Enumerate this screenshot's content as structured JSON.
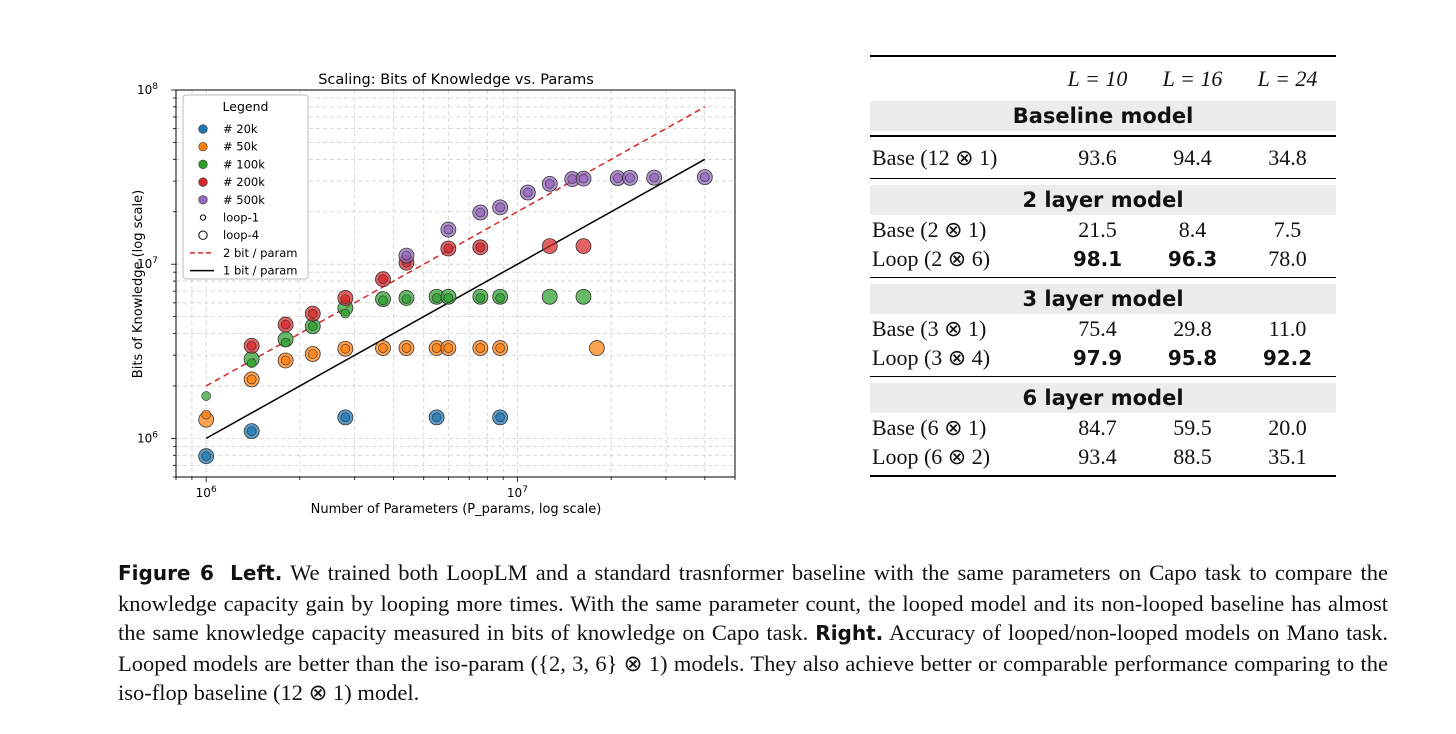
{
  "chart_data": {
    "type": "scatter",
    "title": "Scaling: Bits of Knowledge vs. Params",
    "xlabel": "Number of Parameters (P_params, log scale)",
    "ylabel": "Bits of Knowledge (log scale)",
    "xscale": "log",
    "yscale": "log",
    "xlim": [
      800000,
      50000000
    ],
    "ylim": [
      600000,
      100000000
    ],
    "xticks": [
      {
        "value": 1000000,
        "base": "10",
        "exp": "6"
      },
      {
        "value": 10000000,
        "base": "10",
        "exp": "7"
      }
    ],
    "yticks": [
      {
        "value": 1000000,
        "base": "10",
        "exp": "6"
      },
      {
        "value": 10000000,
        "base": "10",
        "exp": "7"
      },
      {
        "value": 100000000,
        "base": "10",
        "exp": "8"
      }
    ],
    "grid": true,
    "legend": {
      "title": "Legend",
      "placement": "top-left",
      "entries": [
        {
          "label": "# 20k",
          "kind": "dot",
          "color": "#1f77b4"
        },
        {
          "label": "# 50k",
          "kind": "dot",
          "color": "#ff7f0e"
        },
        {
          "label": "# 100k",
          "kind": "dot",
          "color": "#2ca02c"
        },
        {
          "label": "# 200k",
          "kind": "dot",
          "color": "#d62728"
        },
        {
          "label": "# 500k",
          "kind": "dot",
          "color": "#9467bd"
        },
        {
          "label": "loop-1",
          "kind": "hollow-small"
        },
        {
          "label": "loop-4",
          "kind": "hollow-large"
        },
        {
          "label": "2 bit / param",
          "kind": "dashed",
          "color": "#d62728"
        },
        {
          "label": "1 bit / param",
          "kind": "solid",
          "color": "#000000"
        }
      ]
    },
    "lines": [
      {
        "name": "2 bit / param",
        "color": "#d62728",
        "style": "dashed",
        "x": [
          1000000,
          40000000
        ],
        "y": [
          2000000,
          80000000
        ]
      },
      {
        "name": "1 bit / param",
        "color": "#000000",
        "style": "solid",
        "x": [
          1000000,
          40000000
        ],
        "y": [
          1000000,
          40000000
        ]
      }
    ],
    "series": [
      {
        "name": "# 20k",
        "color": "#1f77b4",
        "loop1": [
          [
            1000000,
            790000
          ],
          [
            1400000,
            1100000
          ],
          [
            2800000,
            1320000
          ],
          [
            5500000,
            1320000
          ],
          [
            8800000,
            1320000
          ]
        ],
        "loop4": [
          [
            1000000,
            790000
          ],
          [
            1400000,
            1100000
          ],
          [
            2800000,
            1320000
          ],
          [
            5500000,
            1320000
          ],
          [
            8800000,
            1320000
          ]
        ]
      },
      {
        "name": "# 50k",
        "color": "#ff7f0e",
        "loop1": [
          [
            1000000,
            1370000
          ],
          [
            1400000,
            2180000
          ],
          [
            1800000,
            2800000
          ],
          [
            2200000,
            3050000
          ],
          [
            2800000,
            3270000
          ],
          [
            3700000,
            3300000
          ],
          [
            4400000,
            3300000
          ],
          [
            5500000,
            3300000
          ],
          [
            6000000,
            3300000
          ],
          [
            7600000,
            3300000
          ],
          [
            8800000,
            3300000
          ]
        ],
        "loop4": [
          [
            1000000,
            1280000
          ],
          [
            1400000,
            2180000
          ],
          [
            1800000,
            2800000
          ],
          [
            2200000,
            3050000
          ],
          [
            2800000,
            3270000
          ],
          [
            3700000,
            3300000
          ],
          [
            4400000,
            3300000
          ],
          [
            5500000,
            3300000
          ],
          [
            6000000,
            3300000
          ],
          [
            7600000,
            3300000
          ],
          [
            8800000,
            3300000
          ],
          [
            18000000,
            3300000
          ]
        ]
      },
      {
        "name": "# 100k",
        "color": "#2ca02c",
        "loop1": [
          [
            1000000,
            1750000
          ],
          [
            1400000,
            2700000
          ],
          [
            1800000,
            3550000
          ],
          [
            2200000,
            4400000
          ],
          [
            2800000,
            5200000
          ],
          [
            3700000,
            6200000
          ],
          [
            4400000,
            6300000
          ],
          [
            5500000,
            6400000
          ],
          [
            6000000,
            6400000
          ],
          [
            7600000,
            6400000
          ],
          [
            8800000,
            6400000
          ]
        ],
        "loop4": [
          [
            1400000,
            2850000
          ],
          [
            1800000,
            3700000
          ],
          [
            2200000,
            4400000
          ],
          [
            2800000,
            5600000
          ],
          [
            3700000,
            6300000
          ],
          [
            4400000,
            6400000
          ],
          [
            5500000,
            6500000
          ],
          [
            6000000,
            6500000
          ],
          [
            7600000,
            6500000
          ],
          [
            8800000,
            6500000
          ],
          [
            12700000,
            6500000
          ],
          [
            16300000,
            6500000
          ]
        ]
      },
      {
        "name": "# 200k",
        "color": "#d62728",
        "loop1": [
          [
            1400000,
            3400000
          ],
          [
            1800000,
            4500000
          ],
          [
            2200000,
            5200000
          ],
          [
            2800000,
            6300000
          ],
          [
            3700000,
            8200000
          ],
          [
            4400000,
            10200000
          ],
          [
            6000000,
            12300000
          ],
          [
            7600000,
            12500000
          ]
        ],
        "loop4": [
          [
            1400000,
            3400000
          ],
          [
            1800000,
            4500000
          ],
          [
            2200000,
            5200000
          ],
          [
            2800000,
            6400000
          ],
          [
            3700000,
            8200000
          ],
          [
            4400000,
            10200000
          ],
          [
            6000000,
            12300000
          ],
          [
            7600000,
            12500000
          ],
          [
            12700000,
            12700000
          ],
          [
            16300000,
            12700000
          ]
        ]
      },
      {
        "name": "# 500k",
        "color": "#9467bd",
        "loop1": [
          [
            4400000,
            11200000
          ],
          [
            6000000,
            15800000
          ],
          [
            7600000,
            19800000
          ],
          [
            8800000,
            21200000
          ],
          [
            10800000,
            25800000
          ],
          [
            12700000,
            28900000
          ],
          [
            15000000,
            30800000
          ],
          [
            16300000,
            31000000
          ],
          [
            21000000,
            31200000
          ],
          [
            23000000,
            31300000
          ],
          [
            27500000,
            31400000
          ],
          [
            40000000,
            31600000
          ]
        ],
        "loop4": [
          [
            4400000,
            11200000
          ],
          [
            6000000,
            15800000
          ],
          [
            7600000,
            19800000
          ],
          [
            8800000,
            21200000
          ],
          [
            10800000,
            25800000
          ],
          [
            12700000,
            28900000
          ],
          [
            15000000,
            30800000
          ],
          [
            16300000,
            31000000
          ],
          [
            21000000,
            31200000
          ],
          [
            23000000,
            31300000
          ],
          [
            27500000,
            31400000
          ],
          [
            40000000,
            31600000
          ]
        ]
      }
    ]
  },
  "table": {
    "headers": [
      "L = 10",
      "L = 16",
      "L = 24"
    ],
    "sections": [
      {
        "title": "Baseline model",
        "rows": [
          {
            "label": "Base (12 ⊗ 1)",
            "values": [
              "93.6",
              "94.4",
              "34.8"
            ],
            "bold": [
              false,
              false,
              false
            ]
          }
        ]
      },
      {
        "title": "2 layer model",
        "rows": [
          {
            "label": "Base (2 ⊗ 1)",
            "values": [
              "21.5",
              "8.4",
              "7.5"
            ],
            "bold": [
              false,
              false,
              false
            ]
          },
          {
            "label": "Loop (2 ⊗ 6)",
            "values": [
              "98.1",
              "96.3",
              "78.0"
            ],
            "bold": [
              true,
              true,
              false
            ]
          }
        ]
      },
      {
        "title": "3 layer model",
        "rows": [
          {
            "label": "Base (3 ⊗ 1)",
            "values": [
              "75.4",
              "29.8",
              "11.0"
            ],
            "bold": [
              false,
              false,
              false
            ]
          },
          {
            "label": "Loop (3 ⊗ 4)",
            "values": [
              "97.9",
              "95.8",
              "92.2"
            ],
            "bold": [
              true,
              true,
              true
            ]
          }
        ]
      },
      {
        "title": "6 layer model",
        "rows": [
          {
            "label": "Base (6 ⊗ 1)",
            "values": [
              "84.7",
              "59.5",
              "20.0"
            ],
            "bold": [
              false,
              false,
              false
            ]
          },
          {
            "label": "Loop (6 ⊗ 2)",
            "values": [
              "93.4",
              "88.5",
              "35.1"
            ],
            "bold": [
              false,
              false,
              false
            ]
          }
        ]
      }
    ]
  },
  "caption": {
    "figure_label": "Figure 6",
    "left_label": "Left.",
    "left_text": "We trained both LoopLM and a standard trasnformer baseline with the same parameters on Capo task to compare the knowledge capacity gain by looping more times. With the same parameter count, the looped model and its non-looped baseline has almost the same knowledge capacity measured in bits of knowledge on Capo task.",
    "right_label": "Right.",
    "right_text": "Accuracy of looped/non-looped models on Mano task. Looped models are better than the iso-param ({2, 3, 6} ⊗ 1) models. They also achieve better or comparable performance comparing to the iso-flop baseline (12 ⊗ 1) model."
  }
}
